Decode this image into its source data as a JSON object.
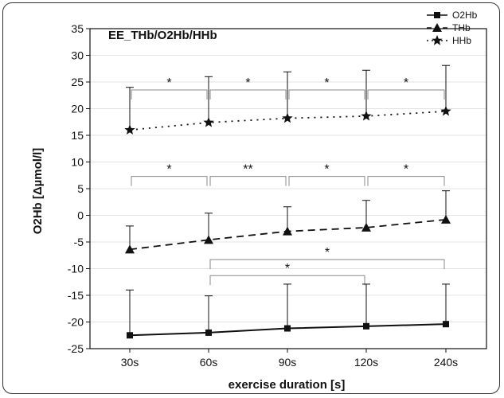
{
  "chart_data": {
    "type": "line",
    "title": "EE_THb/O2Hb/HHb",
    "xlabel": "exercise duration [s]",
    "ylabel": "O2Hb [Δµmol/l]",
    "categories": [
      "30s",
      "60s",
      "90s",
      "120s",
      "240s"
    ],
    "ylim": [
      -25,
      35
    ],
    "yticks": [
      -25,
      -20,
      -15,
      -10,
      -5,
      0,
      5,
      10,
      15,
      20,
      25,
      30,
      35
    ],
    "grid": true,
    "legend_position": "top-right",
    "series": [
      {
        "name": "O2Hb",
        "marker": "square",
        "line": "solid",
        "values": [
          -22.5,
          -22.0,
          -21.2,
          -20.8,
          -20.4
        ],
        "error_upper": [
          -14.0,
          -15.1,
          -12.9,
          -12.9,
          -12.9
        ]
      },
      {
        "name": "THb",
        "marker": "triangle",
        "line": "dashed",
        "values": [
          -6.4,
          -4.6,
          -3.0,
          -2.3,
          -0.8
        ],
        "error_upper": [
          -2.0,
          0.4,
          1.6,
          2.8,
          4.6
        ]
      },
      {
        "name": "HHb",
        "marker": "star",
        "line": "dotted",
        "values": [
          16.0,
          17.4,
          18.2,
          18.6,
          19.5
        ],
        "error_upper": [
          24.0,
          26.0,
          26.9,
          27.2,
          28.1
        ]
      }
    ],
    "significance": [
      {
        "from": 0,
        "to": 1,
        "y": 23.5,
        "label": "*"
      },
      {
        "from": 1,
        "to": 2,
        "y": 23.5,
        "label": "*"
      },
      {
        "from": 2,
        "to": 3,
        "y": 23.5,
        "label": "*"
      },
      {
        "from": 3,
        "to": 4,
        "y": 23.5,
        "label": "*"
      },
      {
        "from": 0,
        "to": 1,
        "y": 7.3,
        "label": "*"
      },
      {
        "from": 1,
        "to": 2,
        "y": 7.3,
        "label": "**"
      },
      {
        "from": 2,
        "to": 3,
        "y": 7.3,
        "label": "*"
      },
      {
        "from": 3,
        "to": 4,
        "y": 7.3,
        "label": "*"
      },
      {
        "from": 1,
        "to": 4,
        "y": -8.3,
        "label": "*"
      },
      {
        "from": 1,
        "to": 3,
        "y": -11.3,
        "label": "*"
      }
    ]
  }
}
